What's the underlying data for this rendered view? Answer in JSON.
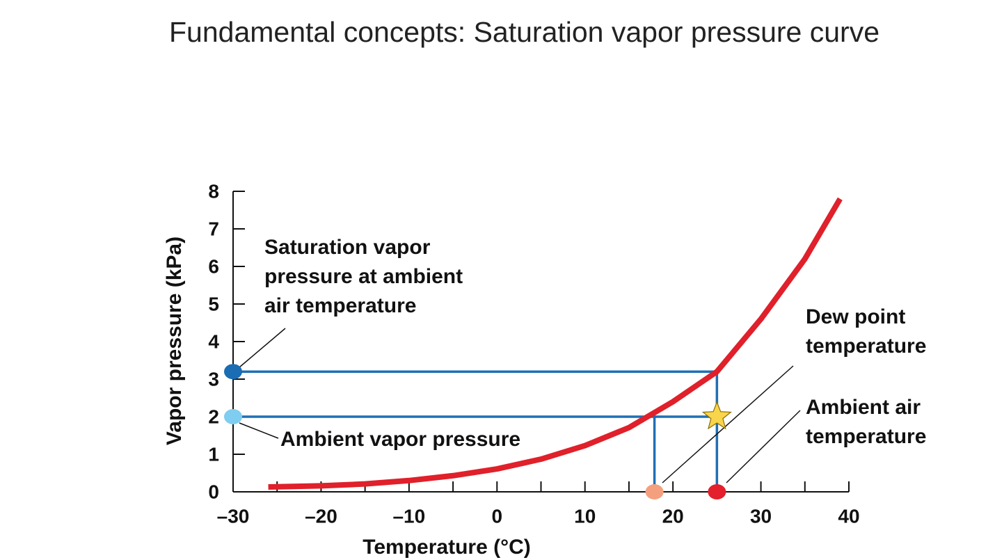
{
  "chart_data": {
    "type": "line",
    "title": "Fundamental concepts: Saturation vapor pressure curve",
    "x_label": "Temperature (°C)",
    "y_label": "Vapor pressure (kPa)",
    "xlim": [
      -30,
      40
    ],
    "ylim": [
      0,
      8
    ],
    "xticks": [
      {
        "value": -30,
        "label": "–30"
      },
      {
        "value": -20,
        "label": "–20"
      },
      {
        "value": -10,
        "label": "–10"
      },
      0,
      10,
      20,
      30,
      40
    ],
    "xminorticks": [
      -25,
      -15,
      -5,
      5,
      15,
      25,
      35
    ],
    "yticks": [
      0,
      1,
      2,
      3,
      4,
      5,
      6,
      7,
      8
    ],
    "curve": {
      "color": "#e0202a",
      "x": [
        -26,
        -20,
        -15,
        -10,
        -5,
        0,
        5,
        10,
        15,
        20,
        25,
        30,
        35,
        39
      ],
      "y": [
        0.13,
        0.16,
        0.21,
        0.3,
        0.43,
        0.61,
        0.87,
        1.23,
        1.71,
        2.4,
        3.2,
        4.6,
        6.2,
        7.8
      ]
    },
    "guides": {
      "color": "#1f6fb5",
      "lines": [
        {
          "x": [
            -30,
            25,
            25
          ],
          "y": [
            3.2,
            3.2,
            0
          ]
        },
        {
          "x": [
            -30,
            17.9,
            17.9
          ],
          "y": [
            2.0,
            2.0,
            0
          ]
        },
        {
          "x": [
            17.9,
            25
          ],
          "y": [
            2.0,
            2.0
          ]
        }
      ]
    },
    "points": [
      {
        "x": -30,
        "y": 3.2,
        "color": "#1a6db3",
        "shape": "circle"
      },
      {
        "x": -30,
        "y": 2.0,
        "color": "#7fcdf0",
        "shape": "circle"
      },
      {
        "x": 17.9,
        "y": 0,
        "color": "#f4a07e",
        "shape": "circle"
      },
      {
        "x": 25,
        "y": 0,
        "color": "#e3202b",
        "shape": "circle"
      },
      {
        "x": 25,
        "y": 2.0,
        "color": "#f9d54b",
        "shape": "star"
      }
    ],
    "annotations": [
      {
        "lines": [
          "Saturation vapor",
          "pressure at ambient",
          "air temperature"
        ]
      },
      {
        "lines": [
          "Ambient vapor pressure"
        ]
      },
      {
        "lines": [
          "Dew point",
          "temperature"
        ]
      },
      {
        "lines": [
          "Ambient air",
          "temperature"
        ]
      }
    ]
  }
}
